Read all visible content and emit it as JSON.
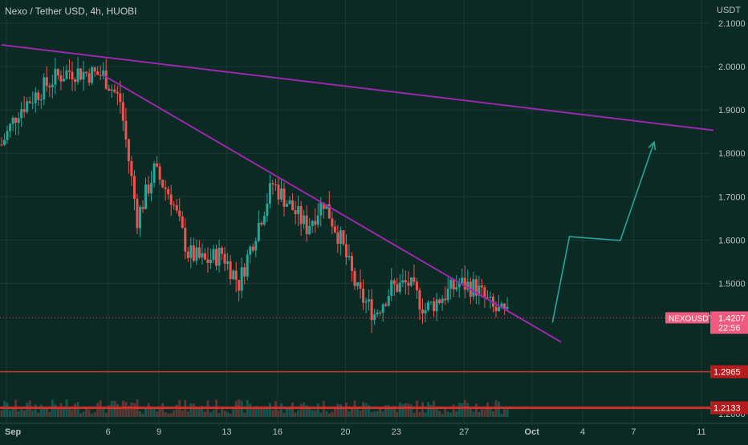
{
  "header": {
    "title": "Nexo / Tether USD, 4h, HUOBI",
    "unit": "USDT"
  },
  "colors": {
    "background": "#0c2a24",
    "grid": "#1a3a33",
    "up": "#26a69a",
    "down": "#ef5350",
    "trendline": "#9c27b0",
    "projection": "#26a69a",
    "support": "#d32f2f",
    "price_badge": "#f05a7e"
  },
  "chart_data": {
    "type": "candlestick",
    "symbol": "NEXOUSDT",
    "timeframe": "4h",
    "exchange": "HUOBI",
    "y_ticks": [
      "2.1000",
      "2.0000",
      "1.9000",
      "1.8000",
      "1.7000",
      "1.6000",
      "1.5000"
    ],
    "x_ticks": [
      "Sep",
      "6",
      "9",
      "13",
      "16",
      "20",
      "23",
      "27",
      "Oct",
      "4",
      "7",
      "11"
    ],
    "ylim": [
      1.2,
      2.1
    ],
    "price_path": [
      {
        "date": "Aug 31",
        "price": 1.82
      },
      {
        "date": "Sep 1",
        "price": 1.9
      },
      {
        "date": "Sep 3",
        "price": 1.97
      },
      {
        "date": "Sep 4",
        "price": 1.99
      },
      {
        "date": "Sep 6",
        "price": 1.98
      },
      {
        "date": "Sep 7",
        "price": 1.92
      },
      {
        "date": "Sep 8",
        "price": 1.65
      },
      {
        "date": "Sep 9",
        "price": 1.76
      },
      {
        "date": "Sep 10",
        "price": 1.7
      },
      {
        "date": "Sep 11",
        "price": 1.57
      },
      {
        "date": "Sep 12",
        "price": 1.55
      },
      {
        "date": "Sep 13",
        "price": 1.57
      },
      {
        "date": "Sep 14",
        "price": 1.5
      },
      {
        "date": "Sep 15",
        "price": 1.62
      },
      {
        "date": "Sep 16",
        "price": 1.73
      },
      {
        "date": "Sep 17",
        "price": 1.68
      },
      {
        "date": "Sep 18",
        "price": 1.63
      },
      {
        "date": "Sep 19",
        "price": 1.69
      },
      {
        "date": "Sep 20",
        "price": 1.6
      },
      {
        "date": "Sep 21",
        "price": 1.48
      },
      {
        "date": "Sep 22",
        "price": 1.43
      },
      {
        "date": "Sep 23",
        "price": 1.49
      },
      {
        "date": "Sep 24",
        "price": 1.5
      },
      {
        "date": "Sep 25",
        "price": 1.44
      },
      {
        "date": "Sep 26",
        "price": 1.47
      },
      {
        "date": "Sep 27",
        "price": 1.5
      },
      {
        "date": "Sep 28",
        "price": 1.49
      },
      {
        "date": "Sep 29",
        "price": 1.44
      },
      {
        "date": "Sep 30",
        "price": 1.42
      }
    ],
    "trendlines": [
      {
        "from": {
          "date": "Aug 31",
          "price": 2.05
        },
        "to": {
          "date": "Oct 12",
          "price": 1.853
        }
      },
      {
        "from": {
          "date": "Sep 6",
          "price": 1.98
        },
        "to": {
          "date": "Oct 3",
          "price": 1.365
        }
      }
    ],
    "projection": [
      {
        "date": "Oct 2.5",
        "price": 1.41
      },
      {
        "date": "Oct 3.5",
        "price": 1.608
      },
      {
        "date": "Oct 6.5",
        "price": 1.599
      },
      {
        "date": "Oct 8.5",
        "price": 1.826
      }
    ],
    "horizontal_levels": [
      {
        "label": "1.2965",
        "value": 1.2965
      },
      {
        "label": "1.2133",
        "value": 1.2133
      }
    ],
    "current_price": {
      "symbol": "NEXOUSDT",
      "value": "1.4207",
      "countdown": "22:56"
    },
    "grid": true
  }
}
